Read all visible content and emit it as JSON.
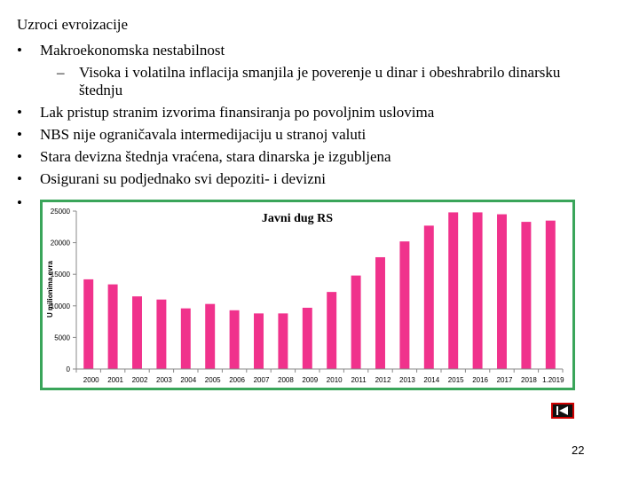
{
  "slide": {
    "title": "Uzroci evroizacije",
    "bullets": [
      "Makroekonomska nestabilnost",
      "Lak pristup stranim izvorima finansiranja po povoljnim uslovima",
      "NBS nije ograničavala intermedijaciju u stranoj valuti",
      "Stara devizna štednja vraćena, stara dinarska je izgubljena",
      "Osigurani su podjednako svi depoziti- i devizni"
    ],
    "sub_bullet_line1": "Visoka i volatilna inflacija smanjila je poverenje u dinar i obeshrabrilo dinarsku",
    "sub_bullet_line2": "štednju",
    "bullet_symbol": "•",
    "dash_symbol": "–",
    "page_number": "22"
  },
  "chart_data": {
    "type": "bar",
    "title": "Javni dug RS",
    "ylabel": "U milionima evra",
    "xlabel": "",
    "categories": [
      "2000",
      "2001",
      "2002",
      "2003",
      "2004",
      "2005",
      "2006",
      "2007",
      "2008",
      "2009",
      "2010",
      "2011",
      "2012",
      "2013",
      "2014",
      "2015",
      "2016",
      "2017",
      "2018",
      "1.2019"
    ],
    "values": [
      14200,
      13400,
      11500,
      11000,
      9600,
      10300,
      9300,
      8800,
      8800,
      9700,
      12200,
      14800,
      17700,
      20200,
      22700,
      24800,
      24800,
      24500,
      23300,
      23500
    ],
    "ylim": [
      0,
      25000
    ],
    "yticks": [
      0,
      5000,
      10000,
      15000,
      20000,
      25000
    ],
    "grid": false,
    "legend": "none",
    "bar_color": "#f0328c"
  },
  "navigation": {
    "icon": "back-icon"
  }
}
